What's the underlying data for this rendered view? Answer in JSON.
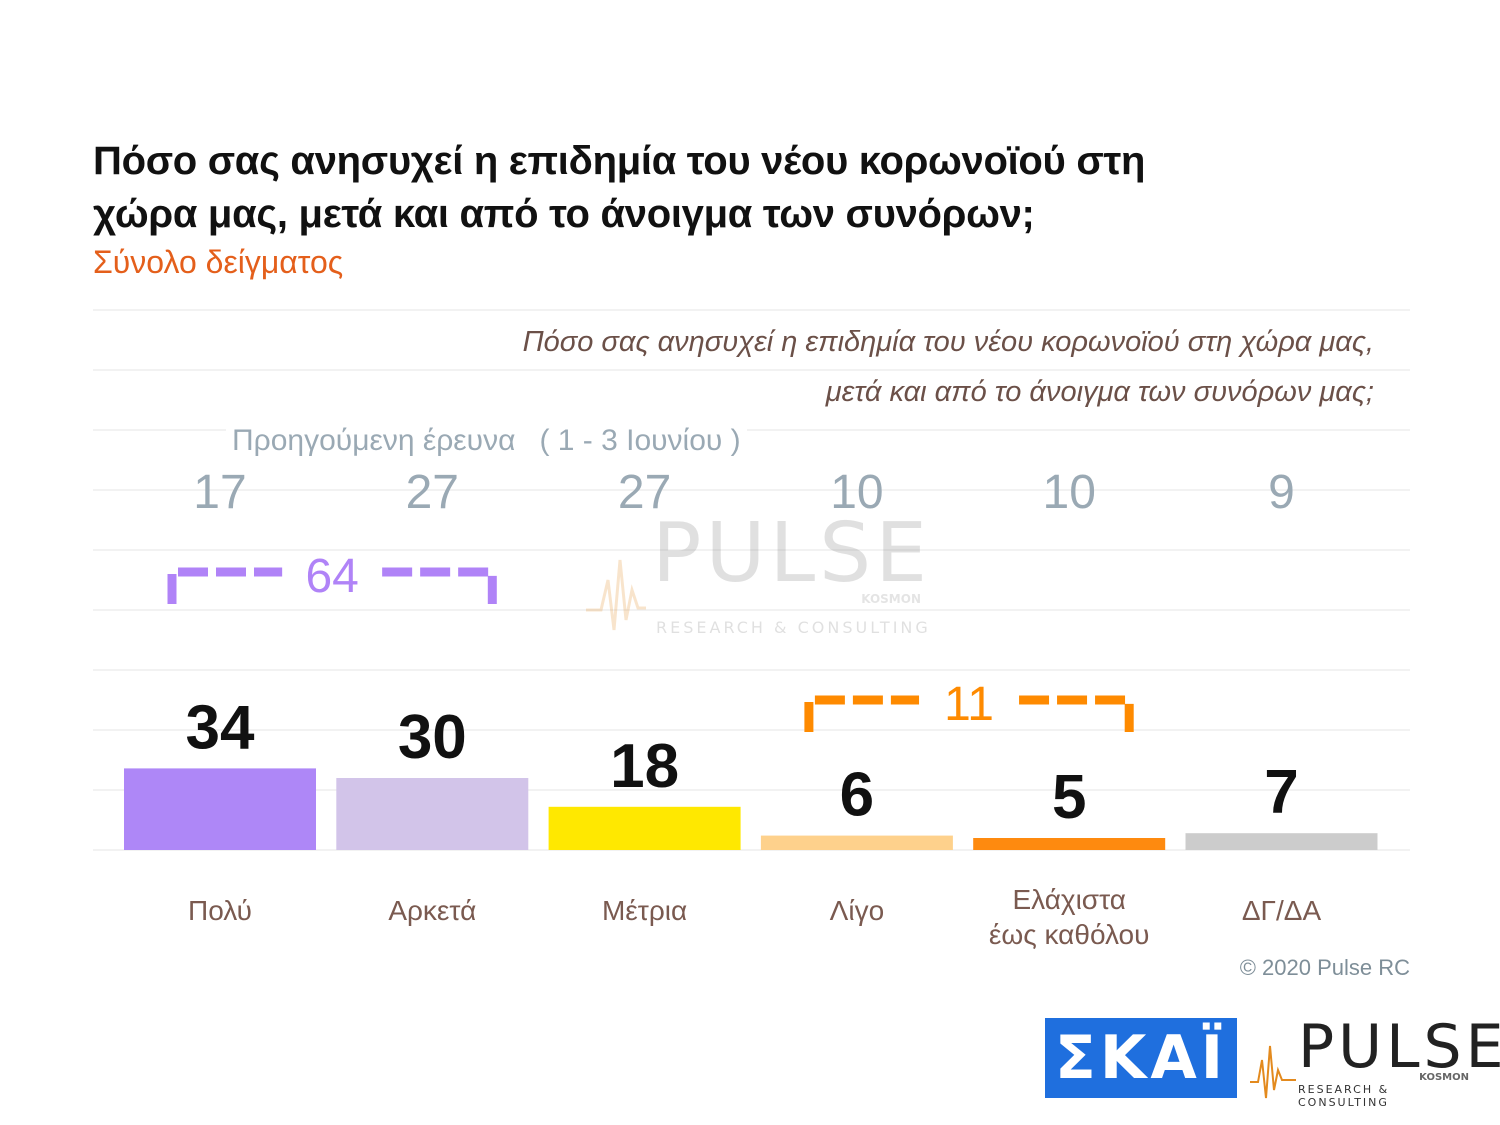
{
  "header": {
    "title": "Πόσο σας ανησυχεί η επιδημία του νέου κορωνοϊού στη χώρα μας, μετά και από το άνοιγμα των συνόρων;",
    "subtitle": "Σύνολο δείγματος"
  },
  "question": {
    "line1": "Πόσο σας ανησυχεί η επιδημία του νέου κορωνοϊού στη χώρα μας,",
    "line2": "μετά και από το άνοιγμα των συνόρων μας;"
  },
  "previous_survey": {
    "label": "Προηγούμενη έρευνα",
    "date": "( 1 - 3 Ιουνίου )"
  },
  "categories": [
    {
      "label_lines": [
        "Πολύ"
      ]
    },
    {
      "label_lines": [
        "Αρκετά"
      ]
    },
    {
      "label_lines": [
        "Μέτρια"
      ]
    },
    {
      "label_lines": [
        "Λίγο"
      ]
    },
    {
      "label_lines": [
        "Ελάχιστα",
        "έως καθόλου"
      ]
    },
    {
      "label_lines": [
        "ΔΓ/ΔΑ"
      ]
    }
  ],
  "chart_data": {
    "type": "bar",
    "title": "Πόσο σας ανησυχεί η επιδημία του νέου κορωνοϊού στη χώρα μας, μετά και από το άνοιγμα των συνόρων;",
    "subtitle": "Σύνολο δείγματος",
    "categories": [
      "Πολύ",
      "Αρκετά",
      "Μέτρια",
      "Λίγο",
      "Ελάχιστα έως καθόλου",
      "ΔΓ/ΔΑ"
    ],
    "series": [
      {
        "values": [
          34,
          30,
          18,
          6,
          5,
          7
        ],
        "colors": [
          "#ae87f7",
          "#d2c4e9",
          "#ffe800",
          "#fed18c",
          "#fe8a0f",
          "#cccccc"
        ]
      },
      {
        "name": "Προηγούμενη έρευνα ( 1 - 3 Ιουνίου )",
        "values": [
          17,
          27,
          27,
          10,
          10,
          9
        ]
      }
    ],
    "brackets": [
      {
        "value": 64,
        "from": 0,
        "to": 1,
        "color": "#b083f7"
      },
      {
        "value": 11,
        "from": 3,
        "to": 4,
        "color": "#fe8a00"
      }
    ],
    "ylim": [
      0,
      80
    ],
    "grid": true,
    "legend": "none"
  },
  "colors": {
    "value_label": "#111111",
    "previous_value": "#9aa9b4",
    "grid": "#eeeeee"
  },
  "footer": {
    "copyright": "© 2020 Pulse RC"
  },
  "logos": {
    "skai": "ΣΚΑΪ",
    "pulse": "PULSE",
    "pulse_kosmos": "KOSMON",
    "pulse_tagline": "RESEARCH & CONSULTING"
  }
}
